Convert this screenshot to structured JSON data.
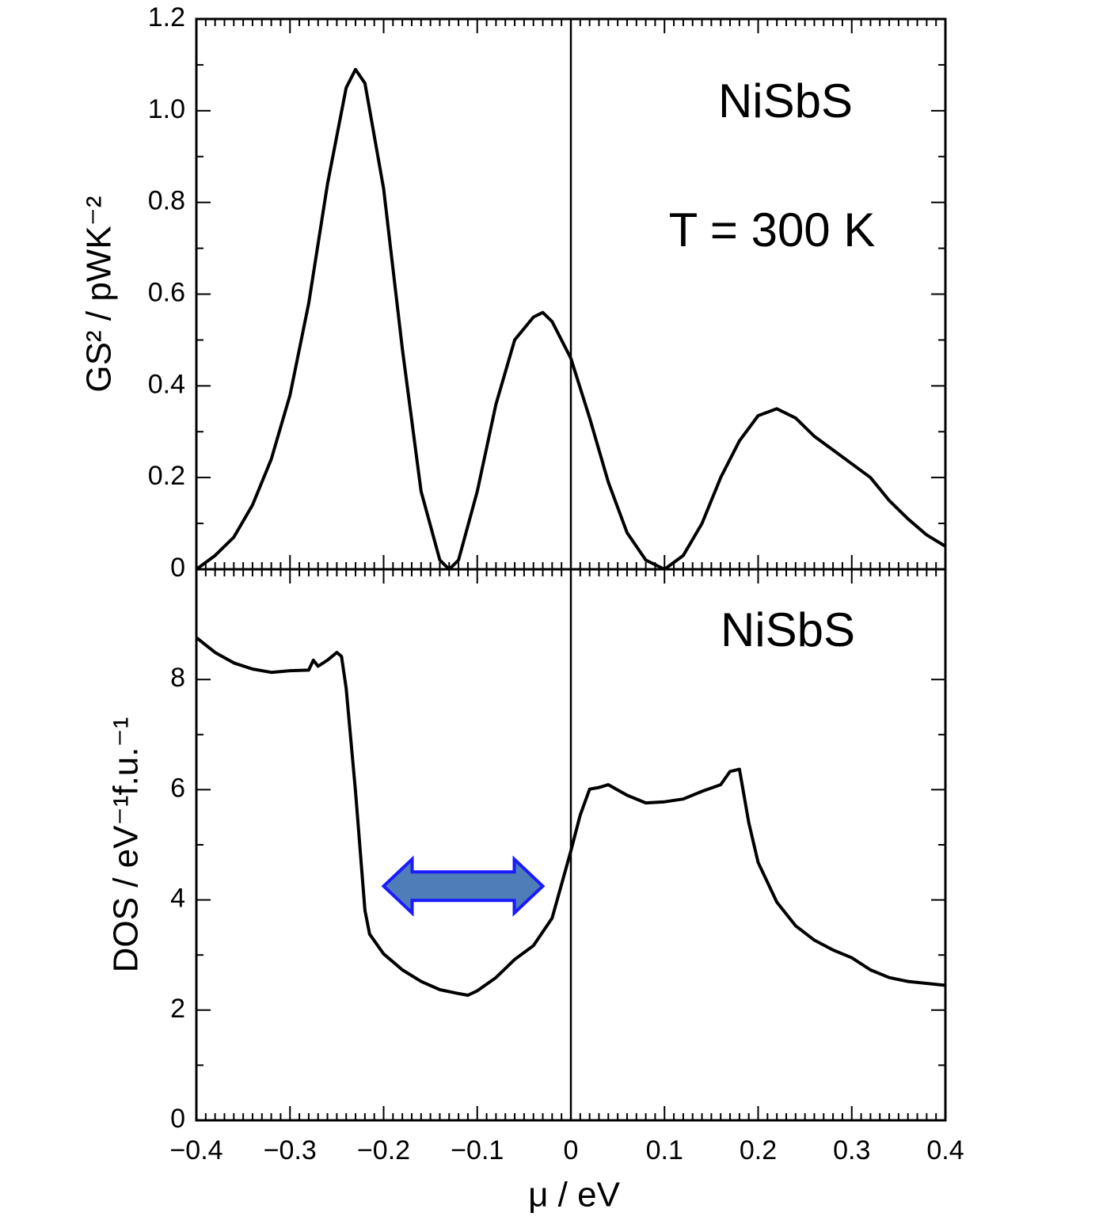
{
  "chart_data": [
    {
      "type": "line",
      "ylabel": "GS² / pWK⁻²",
      "color": "#000000",
      "annotations": [
        "NiSbS",
        "T = 300 K"
      ],
      "x": [
        -0.4,
        -0.38,
        -0.36,
        -0.34,
        -0.32,
        -0.3,
        -0.28,
        -0.26,
        -0.24,
        -0.23,
        -0.22,
        -0.2,
        -0.18,
        -0.16,
        -0.14,
        -0.13,
        -0.12,
        -0.1,
        -0.08,
        -0.06,
        -0.04,
        -0.03,
        -0.02,
        0,
        0.02,
        0.04,
        0.06,
        0.08,
        0.1,
        0.12,
        0.14,
        0.16,
        0.18,
        0.2,
        0.22,
        0.24,
        0.26,
        0.28,
        0.3,
        0.32,
        0.34,
        0.36,
        0.38,
        0.4
      ],
      "values": [
        0,
        0.03,
        0.07,
        0.14,
        0.24,
        0.38,
        0.58,
        0.84,
        1.05,
        1.09,
        1.06,
        0.83,
        0.48,
        0.17,
        0.02,
        0,
        0.02,
        0.17,
        0.36,
        0.5,
        0.55,
        0.56,
        0.54,
        0.46,
        0.33,
        0.19,
        0.08,
        0.02,
        0,
        0.03,
        0.1,
        0.2,
        0.28,
        0.335,
        0.35,
        0.33,
        0.29,
        0.26,
        0.23,
        0.2,
        0.15,
        0.11,
        0.075,
        0.05
      ],
      "xlim": [
        -0.4,
        0.4
      ],
      "xticks": [
        -0.4,
        -0.3,
        -0.2,
        -0.1,
        0,
        0.1,
        0.2,
        0.3,
        0.4
      ],
      "ylim": [
        0,
        1.2
      ],
      "yticks": [
        0,
        0.2,
        0.4,
        0.6,
        0.8,
        {
          "value": 1,
          "label": "1.0"
        },
        1.2
      ],
      "reference_line_x": 0
    },
    {
      "type": "line",
      "ylabel": "DOS / eV⁻¹f.u.⁻¹",
      "xlabel": "μ / eV",
      "color": "#000000",
      "annotations": [
        "NiSbS"
      ],
      "x": [
        -0.4,
        -0.38,
        -0.36,
        -0.34,
        -0.32,
        -0.3,
        -0.28,
        -0.275,
        -0.27,
        -0.26,
        -0.25,
        -0.245,
        -0.24,
        -0.23,
        -0.22,
        -0.215,
        -0.2,
        -0.18,
        -0.16,
        -0.14,
        -0.12,
        -0.11,
        -0.1,
        -0.08,
        -0.06,
        -0.04,
        -0.02,
        0,
        0.01,
        0.02,
        0.03,
        0.04,
        0.06,
        0.08,
        0.1,
        0.12,
        0.14,
        0.16,
        0.17,
        0.18,
        0.19,
        0.2,
        0.22,
        0.24,
        0.26,
        0.28,
        0.3,
        0.32,
        0.34,
        0.36,
        0.4
      ],
      "values": [
        8.76,
        8.49,
        8.3,
        8.19,
        8.13,
        8.16,
        8.17,
        8.35,
        8.24,
        8.35,
        8.49,
        8.42,
        7.84,
        5.97,
        3.81,
        3.38,
        3.02,
        2.73,
        2.52,
        2.37,
        2.3,
        2.27,
        2.35,
        2.59,
        2.92,
        3.17,
        3.67,
        4.89,
        5.54,
        6.01,
        6.04,
        6.09,
        5.9,
        5.76,
        5.78,
        5.83,
        5.97,
        6.09,
        6.33,
        6.37,
        5.4,
        4.68,
        3.96,
        3.53,
        3.27,
        3.09,
        2.95,
        2.73,
        2.59,
        2.52,
        2.45
      ],
      "xlim": [
        -0.4,
        0.4
      ],
      "xticks": [
        {
          "value": -0.4,
          "label": "−0.4"
        },
        {
          "value": -0.3,
          "label": "−0.3"
        },
        {
          "value": -0.2,
          "label": "−0.2"
        },
        {
          "value": -0.1,
          "label": "−0.1"
        },
        0,
        0.1,
        0.2,
        0.3,
        0.4
      ],
      "ylim": [
        0,
        10
      ],
      "yticks": [
        0,
        2,
        4,
        6,
        8
      ],
      "reference_line_x": 0,
      "arrow": {
        "x_from": -0.2,
        "x_to": -0.03,
        "y": 4.25,
        "fill": "#4f7db8",
        "stroke": "#1a1aff"
      }
    }
  ]
}
